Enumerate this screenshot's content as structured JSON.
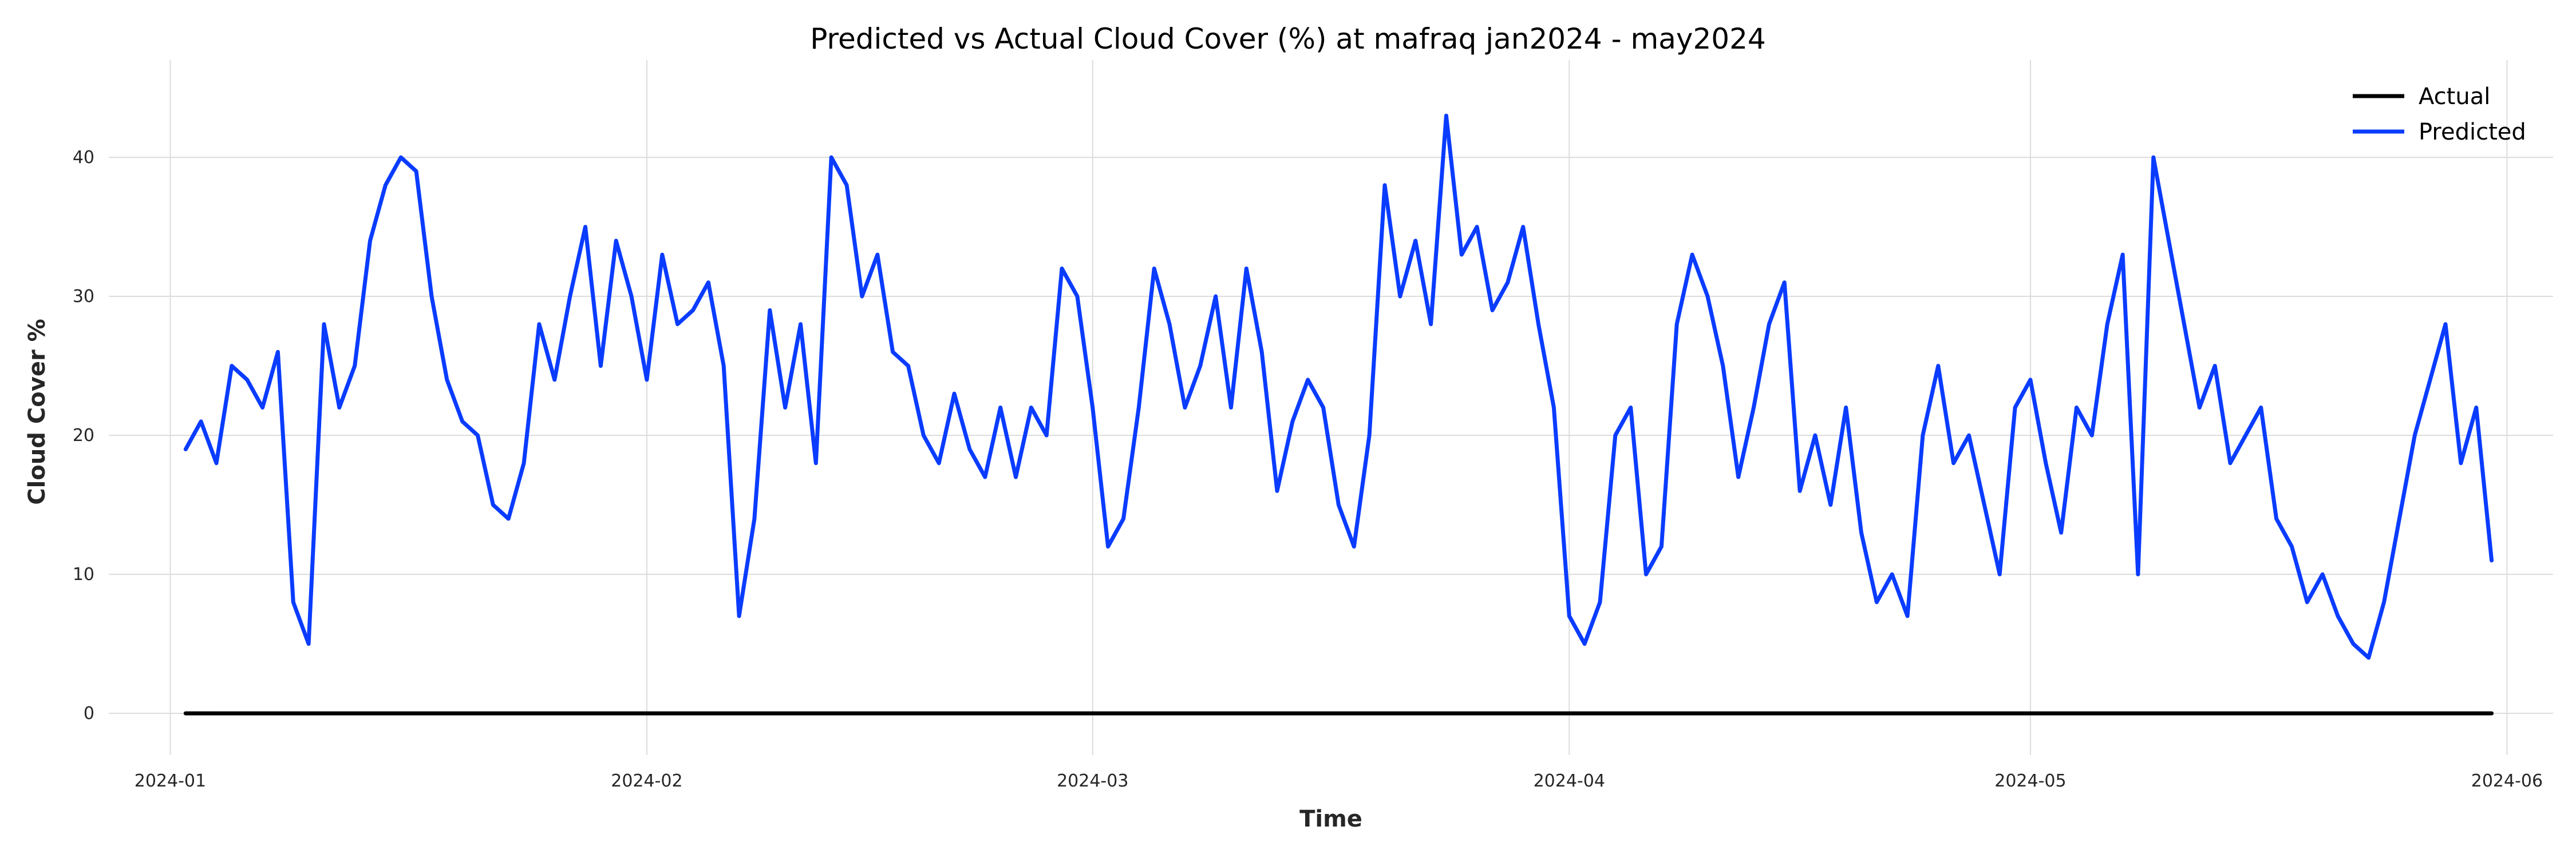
{
  "chart_data": {
    "type": "line",
    "title": "Predicted vs Actual Cloud Cover (%) at mafraq jan2024 - may2024",
    "xlabel": "Time",
    "ylabel": "Cloud Cover %",
    "x_ticks": [
      "2024-01",
      "2024-02",
      "2024-03",
      "2024-04",
      "2024-05",
      "2024-06"
    ],
    "y_ticks": [
      0,
      10,
      20,
      30,
      40
    ],
    "xlim": [
      "2023-12-28",
      "2024-06-04"
    ],
    "ylim": [
      -3,
      47
    ],
    "grid": true,
    "legend_position": "top-right",
    "series": [
      {
        "name": "Actual",
        "color": "#000000",
        "x": [
          "2024-01-02",
          "2024-05-31"
        ],
        "values": [
          0,
          0
        ]
      },
      {
        "name": "Predicted",
        "color": "#0a3cff",
        "x": [
          "2024-01-02",
          "2024-01-03",
          "2024-01-04",
          "2024-01-05",
          "2024-01-06",
          "2024-01-07",
          "2024-01-08",
          "2024-01-09",
          "2024-01-10",
          "2024-01-11",
          "2024-01-12",
          "2024-01-13",
          "2024-01-14",
          "2024-01-15",
          "2024-01-16",
          "2024-01-17",
          "2024-01-18",
          "2024-01-19",
          "2024-01-20",
          "2024-01-21",
          "2024-01-22",
          "2024-01-23",
          "2024-01-24",
          "2024-01-25",
          "2024-01-26",
          "2024-01-27",
          "2024-01-28",
          "2024-01-29",
          "2024-01-30",
          "2024-01-31",
          "2024-02-01",
          "2024-02-02",
          "2024-02-03",
          "2024-02-04",
          "2024-02-05",
          "2024-02-06",
          "2024-02-07",
          "2024-02-08",
          "2024-02-09",
          "2024-02-10",
          "2024-02-11",
          "2024-02-12",
          "2024-02-13",
          "2024-02-14",
          "2024-02-15",
          "2024-02-16",
          "2024-02-17",
          "2024-02-18",
          "2024-02-19",
          "2024-02-20",
          "2024-02-21",
          "2024-02-22",
          "2024-02-23",
          "2024-02-24",
          "2024-02-25",
          "2024-02-26",
          "2024-02-27",
          "2024-02-28",
          "2024-02-29",
          "2024-03-01",
          "2024-03-02",
          "2024-03-03",
          "2024-03-04",
          "2024-03-05",
          "2024-03-06",
          "2024-03-07",
          "2024-03-08",
          "2024-03-09",
          "2024-03-10",
          "2024-03-11",
          "2024-03-12",
          "2024-03-13",
          "2024-03-14",
          "2024-03-15",
          "2024-03-16",
          "2024-03-17",
          "2024-03-18",
          "2024-03-19",
          "2024-03-20",
          "2024-03-21",
          "2024-03-22",
          "2024-03-23",
          "2024-03-24",
          "2024-03-25",
          "2024-03-26",
          "2024-03-27",
          "2024-03-28",
          "2024-03-29",
          "2024-03-30",
          "2024-03-31",
          "2024-04-01",
          "2024-04-02",
          "2024-04-03",
          "2024-04-04",
          "2024-04-05",
          "2024-04-06",
          "2024-04-07",
          "2024-04-08",
          "2024-04-09",
          "2024-04-10",
          "2024-04-11",
          "2024-04-12",
          "2024-04-13",
          "2024-04-14",
          "2024-04-15",
          "2024-04-16",
          "2024-04-17",
          "2024-04-18",
          "2024-04-19",
          "2024-04-20",
          "2024-04-21",
          "2024-04-22",
          "2024-04-23",
          "2024-04-24",
          "2024-04-25",
          "2024-04-26",
          "2024-04-27",
          "2024-04-28",
          "2024-04-29",
          "2024-04-30",
          "2024-05-01",
          "2024-05-02",
          "2024-05-03",
          "2024-05-04",
          "2024-05-05",
          "2024-05-06",
          "2024-05-07",
          "2024-05-08",
          "2024-05-09",
          "2024-05-10",
          "2024-05-11",
          "2024-05-12",
          "2024-05-13",
          "2024-05-14",
          "2024-05-15",
          "2024-05-16",
          "2024-05-17",
          "2024-05-18",
          "2024-05-19",
          "2024-05-20",
          "2024-05-21",
          "2024-05-22",
          "2024-05-23",
          "2024-05-24",
          "2024-05-25",
          "2024-05-26",
          "2024-05-27",
          "2024-05-28",
          "2024-05-29",
          "2024-05-30",
          "2024-05-31"
        ],
        "values": [
          19,
          21,
          18,
          25,
          24,
          22,
          26,
          8,
          5,
          28,
          22,
          25,
          34,
          38,
          40,
          39,
          30,
          24,
          21,
          20,
          15,
          14,
          18,
          28,
          24,
          30,
          35,
          25,
          34,
          30,
          24,
          33,
          28,
          29,
          31,
          25,
          7,
          14,
          29,
          22,
          28,
          18,
          40,
          38,
          30,
          33,
          26,
          25,
          20,
          18,
          23,
          19,
          17,
          22,
          17,
          22,
          20,
          32,
          30,
          22,
          12,
          14,
          22,
          32,
          28,
          22,
          25,
          30,
          22,
          32,
          26,
          16,
          21,
          24,
          22,
          15,
          12,
          20,
          38,
          30,
          34,
          28,
          43,
          33,
          35,
          29,
          31,
          35,
          28,
          22,
          7,
          5,
          8,
          20,
          22,
          10,
          12,
          28,
          33,
          30,
          25,
          17,
          22,
          28,
          31,
          16,
          20,
          15,
          22,
          13,
          8,
          10,
          7,
          20,
          25,
          18,
          20,
          15,
          10,
          22,
          24,
          18,
          13,
          22,
          20,
          28,
          33,
          10,
          40,
          34,
          28,
          22,
          25,
          18,
          20,
          22,
          14,
          12,
          8,
          10,
          7,
          5,
          4,
          8,
          14,
          20,
          24,
          28,
          18,
          22,
          11
        ]
      }
    ]
  }
}
